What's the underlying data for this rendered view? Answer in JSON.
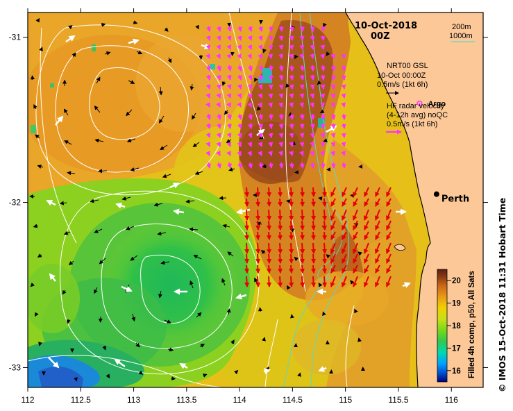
{
  "title": {
    "date": "10-Oct-2018",
    "time": "00Z"
  },
  "depth_legend": {
    "line1": "200m",
    "line2": "1000m",
    "color": "#5ad8c8"
  },
  "gsl_legend": {
    "line1": "NRT00 GSL",
    "line2": "10-Oct 00:00Z",
    "line3": "0.5m/s (1kt 6h)",
    "arrow_color": "#000000"
  },
  "hf_legend": {
    "line1": "HF radar velocity",
    "line2": "(4-12h avg) noQC",
    "line3": "0.5m/s (1kt 6h)",
    "arrow_color": "#ff33ff"
  },
  "argo": {
    "label": "Argo",
    "color": "#ff33ff",
    "lon": 115.7,
    "lat": -31.4
  },
  "city": {
    "label": "Perth",
    "lon": 115.86,
    "lat": -31.95
  },
  "credit": "© IMOS 15-Oct-2018 11:31 Hobart Time",
  "colorbar": {
    "label": "Filled 4h comp, p50, All Sats",
    "ticks": [
      "20",
      "19",
      "18",
      "17",
      "16"
    ],
    "tick_values": [
      20,
      19,
      18,
      17,
      16
    ],
    "min": 15.5,
    "max": 20.5,
    "colors": [
      "#000080",
      "#0050d0",
      "#00a0ff",
      "#00d8b0",
      "#30c850",
      "#78d818",
      "#c8e018",
      "#f0d000",
      "#e89818",
      "#c86418",
      "#8c3c14",
      "#5a2010"
    ]
  },
  "map": {
    "lon_min": 112,
    "lon_max": 116.3,
    "lat_min": -33.12,
    "lat_max": -30.85,
    "x_ticks": [
      112,
      112.5,
      113,
      113.5,
      114,
      114.5,
      115,
      115.5,
      116
    ],
    "x_tick_labels": [
      "112",
      "112.5",
      "113",
      "113.5",
      "114",
      "114.5",
      "115",
      "115.5",
      "116"
    ],
    "y_ticks": [
      -31,
      -32,
      -33
    ],
    "y_tick_labels": [
      "-31",
      "-32",
      "-33"
    ],
    "land_color": "#fcc898"
  }
}
